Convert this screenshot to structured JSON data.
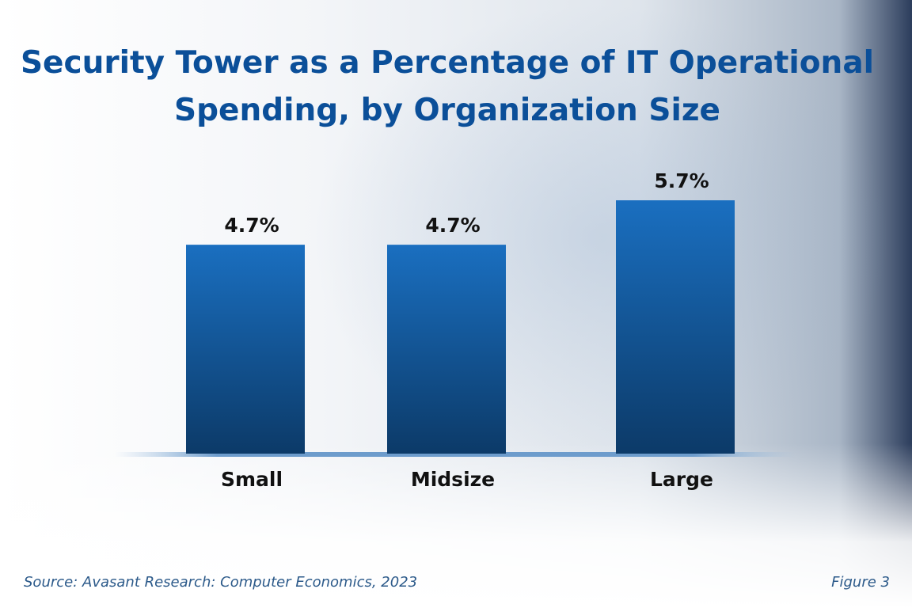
{
  "chart_data": {
    "type": "bar",
    "title": [
      "Security Tower as a Percentage of IT Operational",
      "Spending, by Organization Size"
    ],
    "categories": [
      "Small",
      "Midsize",
      "Large"
    ],
    "values": [
      4.7,
      4.7,
      5.7
    ],
    "value_labels": [
      "4.7%",
      "4.7%",
      "5.7%"
    ],
    "color": "#1a6fc0",
    "source": "Source: Avasant Research: Computer Economics, 2023",
    "figure": "Figure 3"
  }
}
